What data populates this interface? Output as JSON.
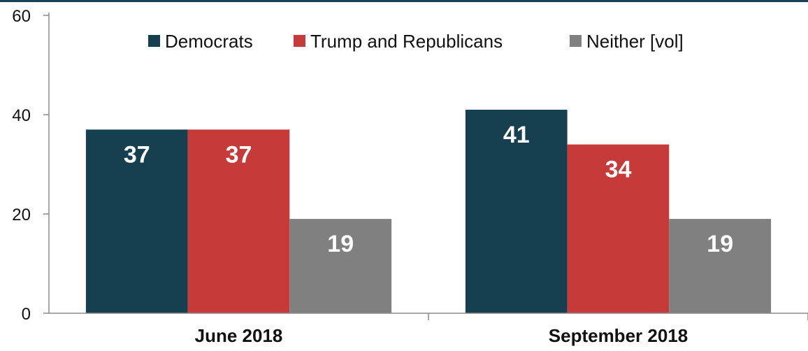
{
  "chart_data": {
    "type": "bar",
    "categories": [
      "June 2018",
      "September 2018"
    ],
    "series": [
      {
        "name": "Democrats",
        "values": [
          37,
          41
        ],
        "color": "#16404f"
      },
      {
        "name": "Trump and Republicans",
        "values": [
          37,
          34
        ],
        "color": "#c63a3a"
      },
      {
        "name": "Neither [vol]",
        "values": [
          19,
          19
        ],
        "color": "#808080"
      }
    ],
    "ylim": [
      0,
      60
    ],
    "yticks": [
      "0",
      "20",
      "40",
      "60"
    ],
    "grid": false,
    "legend": "top-center",
    "title": "",
    "xlabel": "",
    "ylabel": ""
  }
}
